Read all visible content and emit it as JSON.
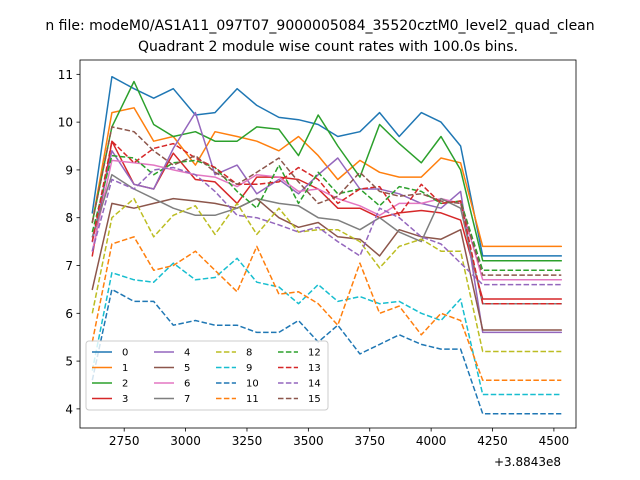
{
  "suptitle": "n file: modeM0/AS1A11_097T07_9000005084_35520cztM0_level2_quad_clean",
  "chart_data": {
    "type": "line",
    "title": "Quadrant 2 module wise count rates with 100.0s bins.",
    "xlabel": "",
    "ylabel": "",
    "x_offset_label": "+3.8843e8",
    "xlim": [
      2570,
      4590
    ],
    "ylim": [
      3.6,
      11.3
    ],
    "x_ticks": [
      2750,
      3000,
      3250,
      3500,
      3750,
      4000,
      4250,
      4500
    ],
    "y_ticks": [
      4,
      5,
      6,
      7,
      8,
      9,
      10,
      11
    ],
    "grid": false,
    "legend_placement": "lower-left",
    "legend_columns": 4,
    "x": [
      2620,
      2700,
      2790,
      2870,
      2950,
      3040,
      3120,
      3210,
      3290,
      3380,
      3460,
      3540,
      3620,
      3710,
      3790,
      3870,
      3960,
      4040,
      4120,
      4210,
      4290,
      4370,
      4450,
      4530
    ],
    "series": [
      {
        "name": "0",
        "color": "#1f77b4",
        "dash": "solid",
        "values": [
          8.1,
          10.95,
          10.7,
          10.5,
          10.7,
          10.15,
          10.2,
          10.7,
          10.35,
          10.1,
          10.05,
          9.95,
          9.7,
          9.8,
          10.2,
          9.7,
          10.2,
          10.0,
          9.5,
          7.2,
          7.2,
          7.2,
          7.2,
          7.2
        ]
      },
      {
        "name": "1",
        "color": "#ff7f0e",
        "dash": "solid",
        "values": [
          7.9,
          10.2,
          10.3,
          9.6,
          9.7,
          9.1,
          9.8,
          9.7,
          9.6,
          9.4,
          9.7,
          9.3,
          8.8,
          9.2,
          8.95,
          8.85,
          8.85,
          9.25,
          9.15,
          7.4,
          7.4,
          7.4,
          7.4,
          7.4
        ]
      },
      {
        "name": "2",
        "color": "#2ca02c",
        "dash": "solid",
        "values": [
          7.9,
          9.9,
          10.85,
          9.95,
          9.7,
          9.8,
          9.6,
          9.6,
          9.9,
          9.85,
          9.3,
          10.15,
          9.5,
          8.85,
          9.95,
          9.55,
          9.15,
          9.7,
          9.0,
          7.1,
          7.1,
          7.1,
          7.1,
          7.1
        ]
      },
      {
        "name": "3",
        "color": "#d62728",
        "dash": "solid",
        "values": [
          7.2,
          9.6,
          8.7,
          8.6,
          9.35,
          8.8,
          8.75,
          8.3,
          8.85,
          8.85,
          8.8,
          8.6,
          8.2,
          8.2,
          8.0,
          8.1,
          8.15,
          8.1,
          7.95,
          6.3,
          6.3,
          6.3,
          6.3,
          6.3
        ]
      },
      {
        "name": "4",
        "color": "#9467bd",
        "dash": "solid",
        "values": [
          7.5,
          9.4,
          8.7,
          8.6,
          9.45,
          10.2,
          8.9,
          9.1,
          8.5,
          8.8,
          8.5,
          8.9,
          9.25,
          8.6,
          8.6,
          8.5,
          8.3,
          8.2,
          8.55,
          5.6,
          5.6,
          5.6,
          5.6,
          5.6
        ]
      },
      {
        "name": "5",
        "color": "#8c564b",
        "dash": "solid",
        "values": [
          6.5,
          8.3,
          8.2,
          8.3,
          8.4,
          8.35,
          8.3,
          8.2,
          8.4,
          8.0,
          7.8,
          7.9,
          7.6,
          7.55,
          7.2,
          7.75,
          7.6,
          7.55,
          7.75,
          5.65,
          5.65,
          5.65,
          5.65,
          5.65
        ]
      },
      {
        "name": "6",
        "color": "#e377c2",
        "dash": "solid",
        "values": [
          7.3,
          9.2,
          9.15,
          9.1,
          9.0,
          8.9,
          8.85,
          8.65,
          8.9,
          8.85,
          8.55,
          8.6,
          8.4,
          8.25,
          8.05,
          8.3,
          8.3,
          8.4,
          8.3,
          6.7,
          6.7,
          6.7,
          6.7,
          6.7
        ]
      },
      {
        "name": "7",
        "color": "#7f7f7f",
        "dash": "solid",
        "values": [
          7.6,
          8.9,
          8.6,
          8.4,
          8.2,
          8.05,
          8.05,
          8.2,
          8.4,
          8.3,
          8.25,
          8.0,
          7.95,
          7.75,
          8.0,
          7.7,
          7.5,
          8.4,
          8.2,
          6.2,
          6.2,
          6.2,
          6.2,
          6.2
        ]
      },
      {
        "name": "8",
        "color": "#bcbd22",
        "dash": "dashed",
        "values": [
          6.0,
          8.0,
          8.4,
          7.6,
          8.05,
          8.25,
          7.65,
          8.3,
          7.65,
          8.2,
          7.7,
          7.75,
          7.75,
          7.5,
          6.95,
          7.4,
          7.55,
          7.3,
          7.3,
          5.2,
          5.2,
          5.2,
          5.2,
          5.2
        ]
      },
      {
        "name": "9",
        "color": "#17becf",
        "dash": "dashed",
        "values": [
          4.8,
          6.85,
          6.7,
          6.65,
          7.05,
          6.7,
          6.75,
          7.15,
          6.65,
          6.55,
          6.2,
          6.6,
          6.25,
          6.35,
          6.2,
          6.25,
          6.0,
          5.85,
          6.3,
          4.3,
          4.3,
          4.3,
          4.3,
          4.3
        ]
      },
      {
        "name": "10",
        "color": "#1f77b4",
        "dash": "dashed",
        "values": [
          4.6,
          6.5,
          6.25,
          6.25,
          5.75,
          5.85,
          5.75,
          5.75,
          5.6,
          5.6,
          5.85,
          5.4,
          5.75,
          5.15,
          5.35,
          5.55,
          5.35,
          5.25,
          5.25,
          3.9,
          3.9,
          3.9,
          3.9,
          3.9
        ]
      },
      {
        "name": "11",
        "color": "#ff7f0e",
        "dash": "dashed",
        "values": [
          5.4,
          7.45,
          7.6,
          6.9,
          7.0,
          7.3,
          6.9,
          6.45,
          7.4,
          6.4,
          6.45,
          6.2,
          5.75,
          7.05,
          6.0,
          6.15,
          5.55,
          6.0,
          5.85,
          4.6,
          4.6,
          4.6,
          4.6,
          4.6
        ]
      },
      {
        "name": "12",
        "color": "#2ca02c",
        "dash": "dashed",
        "values": [
          7.7,
          9.3,
          9.25,
          8.9,
          9.15,
          9.2,
          9.05,
          8.55,
          8.2,
          9.1,
          8.3,
          8.95,
          8.5,
          8.6,
          8.25,
          8.65,
          8.55,
          8.3,
          8.35,
          6.9,
          6.9,
          6.9,
          6.9,
          6.9
        ]
      },
      {
        "name": "13",
        "color": "#d62728",
        "dash": "dashed",
        "values": [
          7.5,
          9.6,
          9.15,
          9.45,
          9.55,
          9.25,
          9.05,
          8.7,
          8.7,
          8.75,
          9.05,
          8.8,
          8.3,
          8.6,
          8.65,
          8.05,
          8.7,
          8.3,
          8.35,
          6.2,
          6.2,
          6.2,
          6.2,
          6.2
        ]
      },
      {
        "name": "14",
        "color": "#9467bd",
        "dash": "dashed",
        "values": [
          7.3,
          8.8,
          8.6,
          9.0,
          9.05,
          8.9,
          8.55,
          8.05,
          8.0,
          7.85,
          7.7,
          7.8,
          7.5,
          7.2,
          8.2,
          8.0,
          7.6,
          7.45,
          7.05,
          6.6,
          6.6,
          6.6,
          6.6,
          6.6
        ]
      },
      {
        "name": "15",
        "color": "#8c564b",
        "dash": "dashed",
        "values": [
          7.9,
          9.9,
          9.8,
          9.4,
          9.1,
          9.3,
          8.95,
          8.7,
          8.95,
          9.25,
          8.75,
          8.3,
          8.45,
          8.95,
          8.55,
          8.45,
          8.5,
          8.35,
          8.3,
          6.8,
          6.8,
          6.8,
          6.8,
          6.8
        ]
      }
    ]
  }
}
